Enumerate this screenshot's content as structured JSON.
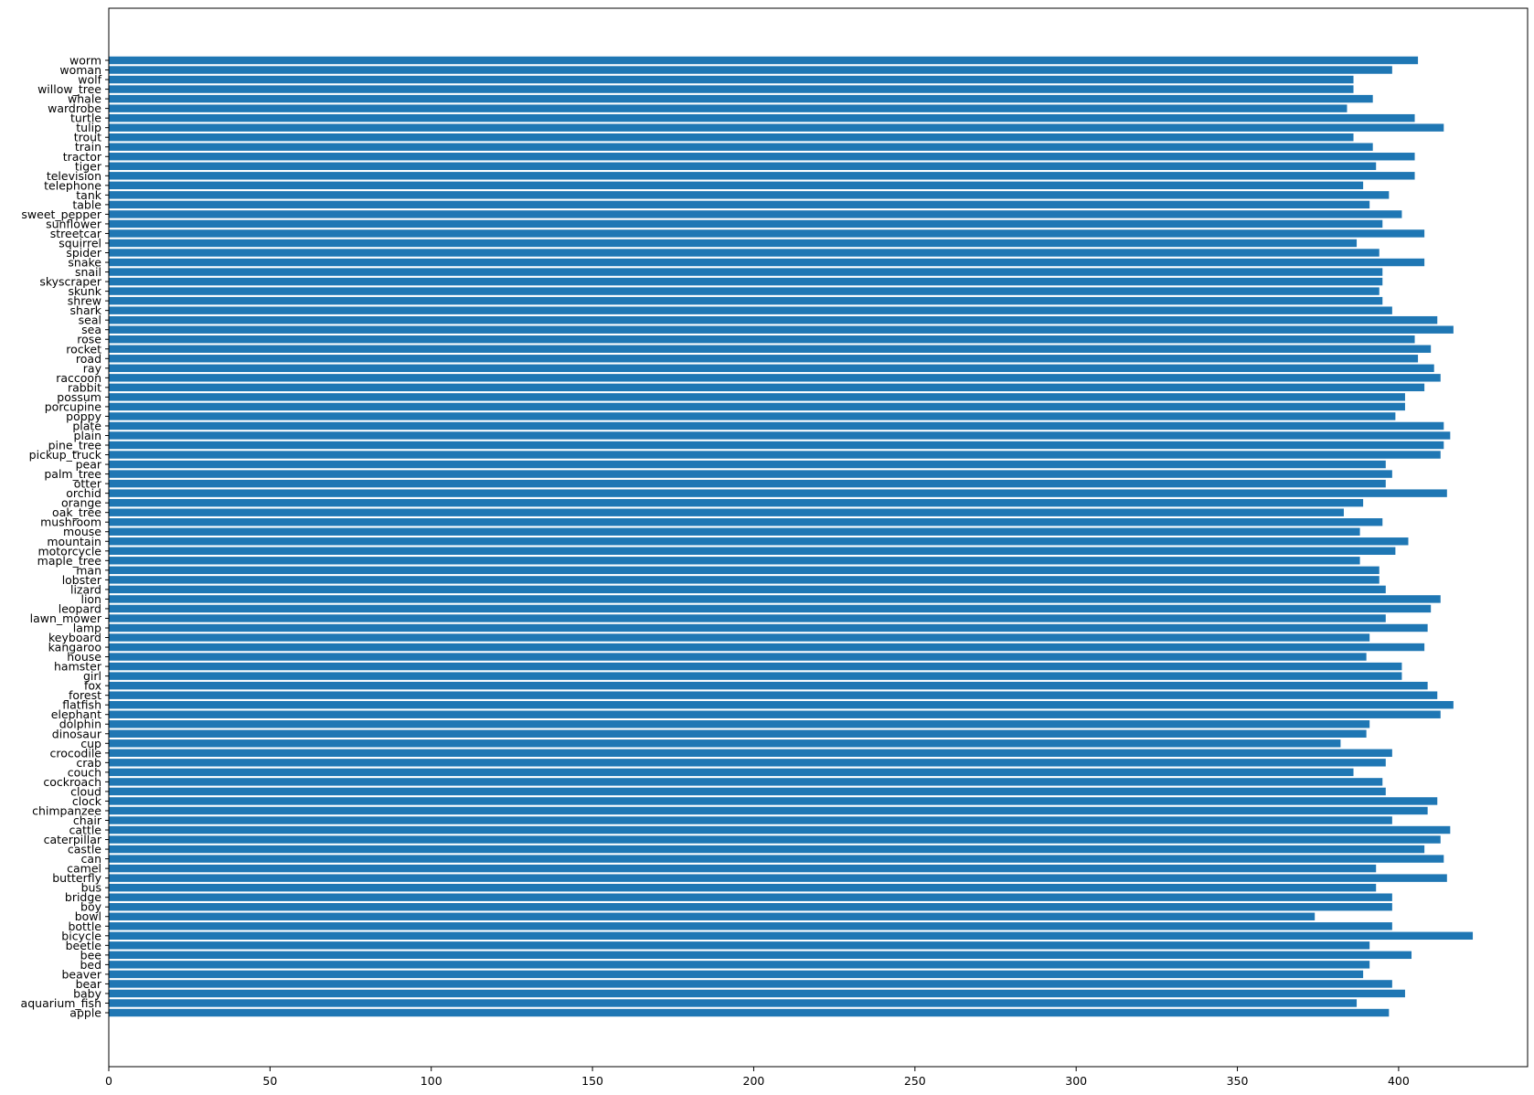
{
  "chart_data": {
    "type": "bar",
    "orientation": "horizontal",
    "title": "",
    "xlabel": "",
    "ylabel": "",
    "xlim": [
      0,
      440
    ],
    "xticks": [
      0,
      50,
      100,
      150,
      200,
      250,
      300,
      350,
      400
    ],
    "grid": false,
    "legend": "none",
    "bar_color": "#1f77b4",
    "categories": [
      "apple",
      "aquarium_fish",
      "baby",
      "bear",
      "beaver",
      "bed",
      "bee",
      "beetle",
      "bicycle",
      "bottle",
      "bowl",
      "boy",
      "bridge",
      "bus",
      "butterfly",
      "camel",
      "can",
      "castle",
      "caterpillar",
      "cattle",
      "chair",
      "chimpanzee",
      "clock",
      "cloud",
      "cockroach",
      "couch",
      "crab",
      "crocodile",
      "cup",
      "dinosaur",
      "dolphin",
      "elephant",
      "flatfish",
      "forest",
      "fox",
      "girl",
      "hamster",
      "house",
      "kangaroo",
      "keyboard",
      "lamp",
      "lawn_mower",
      "leopard",
      "lion",
      "lizard",
      "lobster",
      "man",
      "maple_tree",
      "motorcycle",
      "mountain",
      "mouse",
      "mushroom",
      "oak_tree",
      "orange",
      "orchid",
      "otter",
      "palm_tree",
      "pear",
      "pickup_truck",
      "pine_tree",
      "plain",
      "plate",
      "poppy",
      "porcupine",
      "possum",
      "rabbit",
      "raccoon",
      "ray",
      "road",
      "rocket",
      "rose",
      "sea",
      "seal",
      "shark",
      "shrew",
      "skunk",
      "skyscraper",
      "snail",
      "snake",
      "spider",
      "squirrel",
      "streetcar",
      "sunflower",
      "sweet_pepper",
      "table",
      "tank",
      "telephone",
      "television",
      "tiger",
      "tractor",
      "train",
      "trout",
      "tulip",
      "turtle",
      "wardrobe",
      "whale",
      "willow_tree",
      "wolf",
      "woman",
      "worm"
    ],
    "values": [
      397,
      387,
      402,
      398,
      389,
      391,
      404,
      391,
      423,
      398,
      374,
      398,
      398,
      393,
      415,
      393,
      414,
      408,
      413,
      416,
      398,
      409,
      412,
      396,
      395,
      386,
      396,
      398,
      382,
      390,
      391,
      413,
      417,
      412,
      409,
      401,
      401,
      390,
      408,
      391,
      409,
      396,
      410,
      413,
      396,
      394,
      394,
      388,
      399,
      403,
      388,
      395,
      383,
      389,
      415,
      396,
      398,
      396,
      413,
      414,
      416,
      414,
      399,
      402,
      402,
      408,
      413,
      411,
      406,
      410,
      405,
      417,
      412,
      398,
      395,
      394,
      395,
      395,
      408,
      394,
      387,
      408,
      395,
      401,
      391,
      397,
      389,
      405,
      393,
      405,
      392,
      386,
      414,
      405,
      384,
      392,
      386,
      386,
      398,
      406
    ]
  }
}
